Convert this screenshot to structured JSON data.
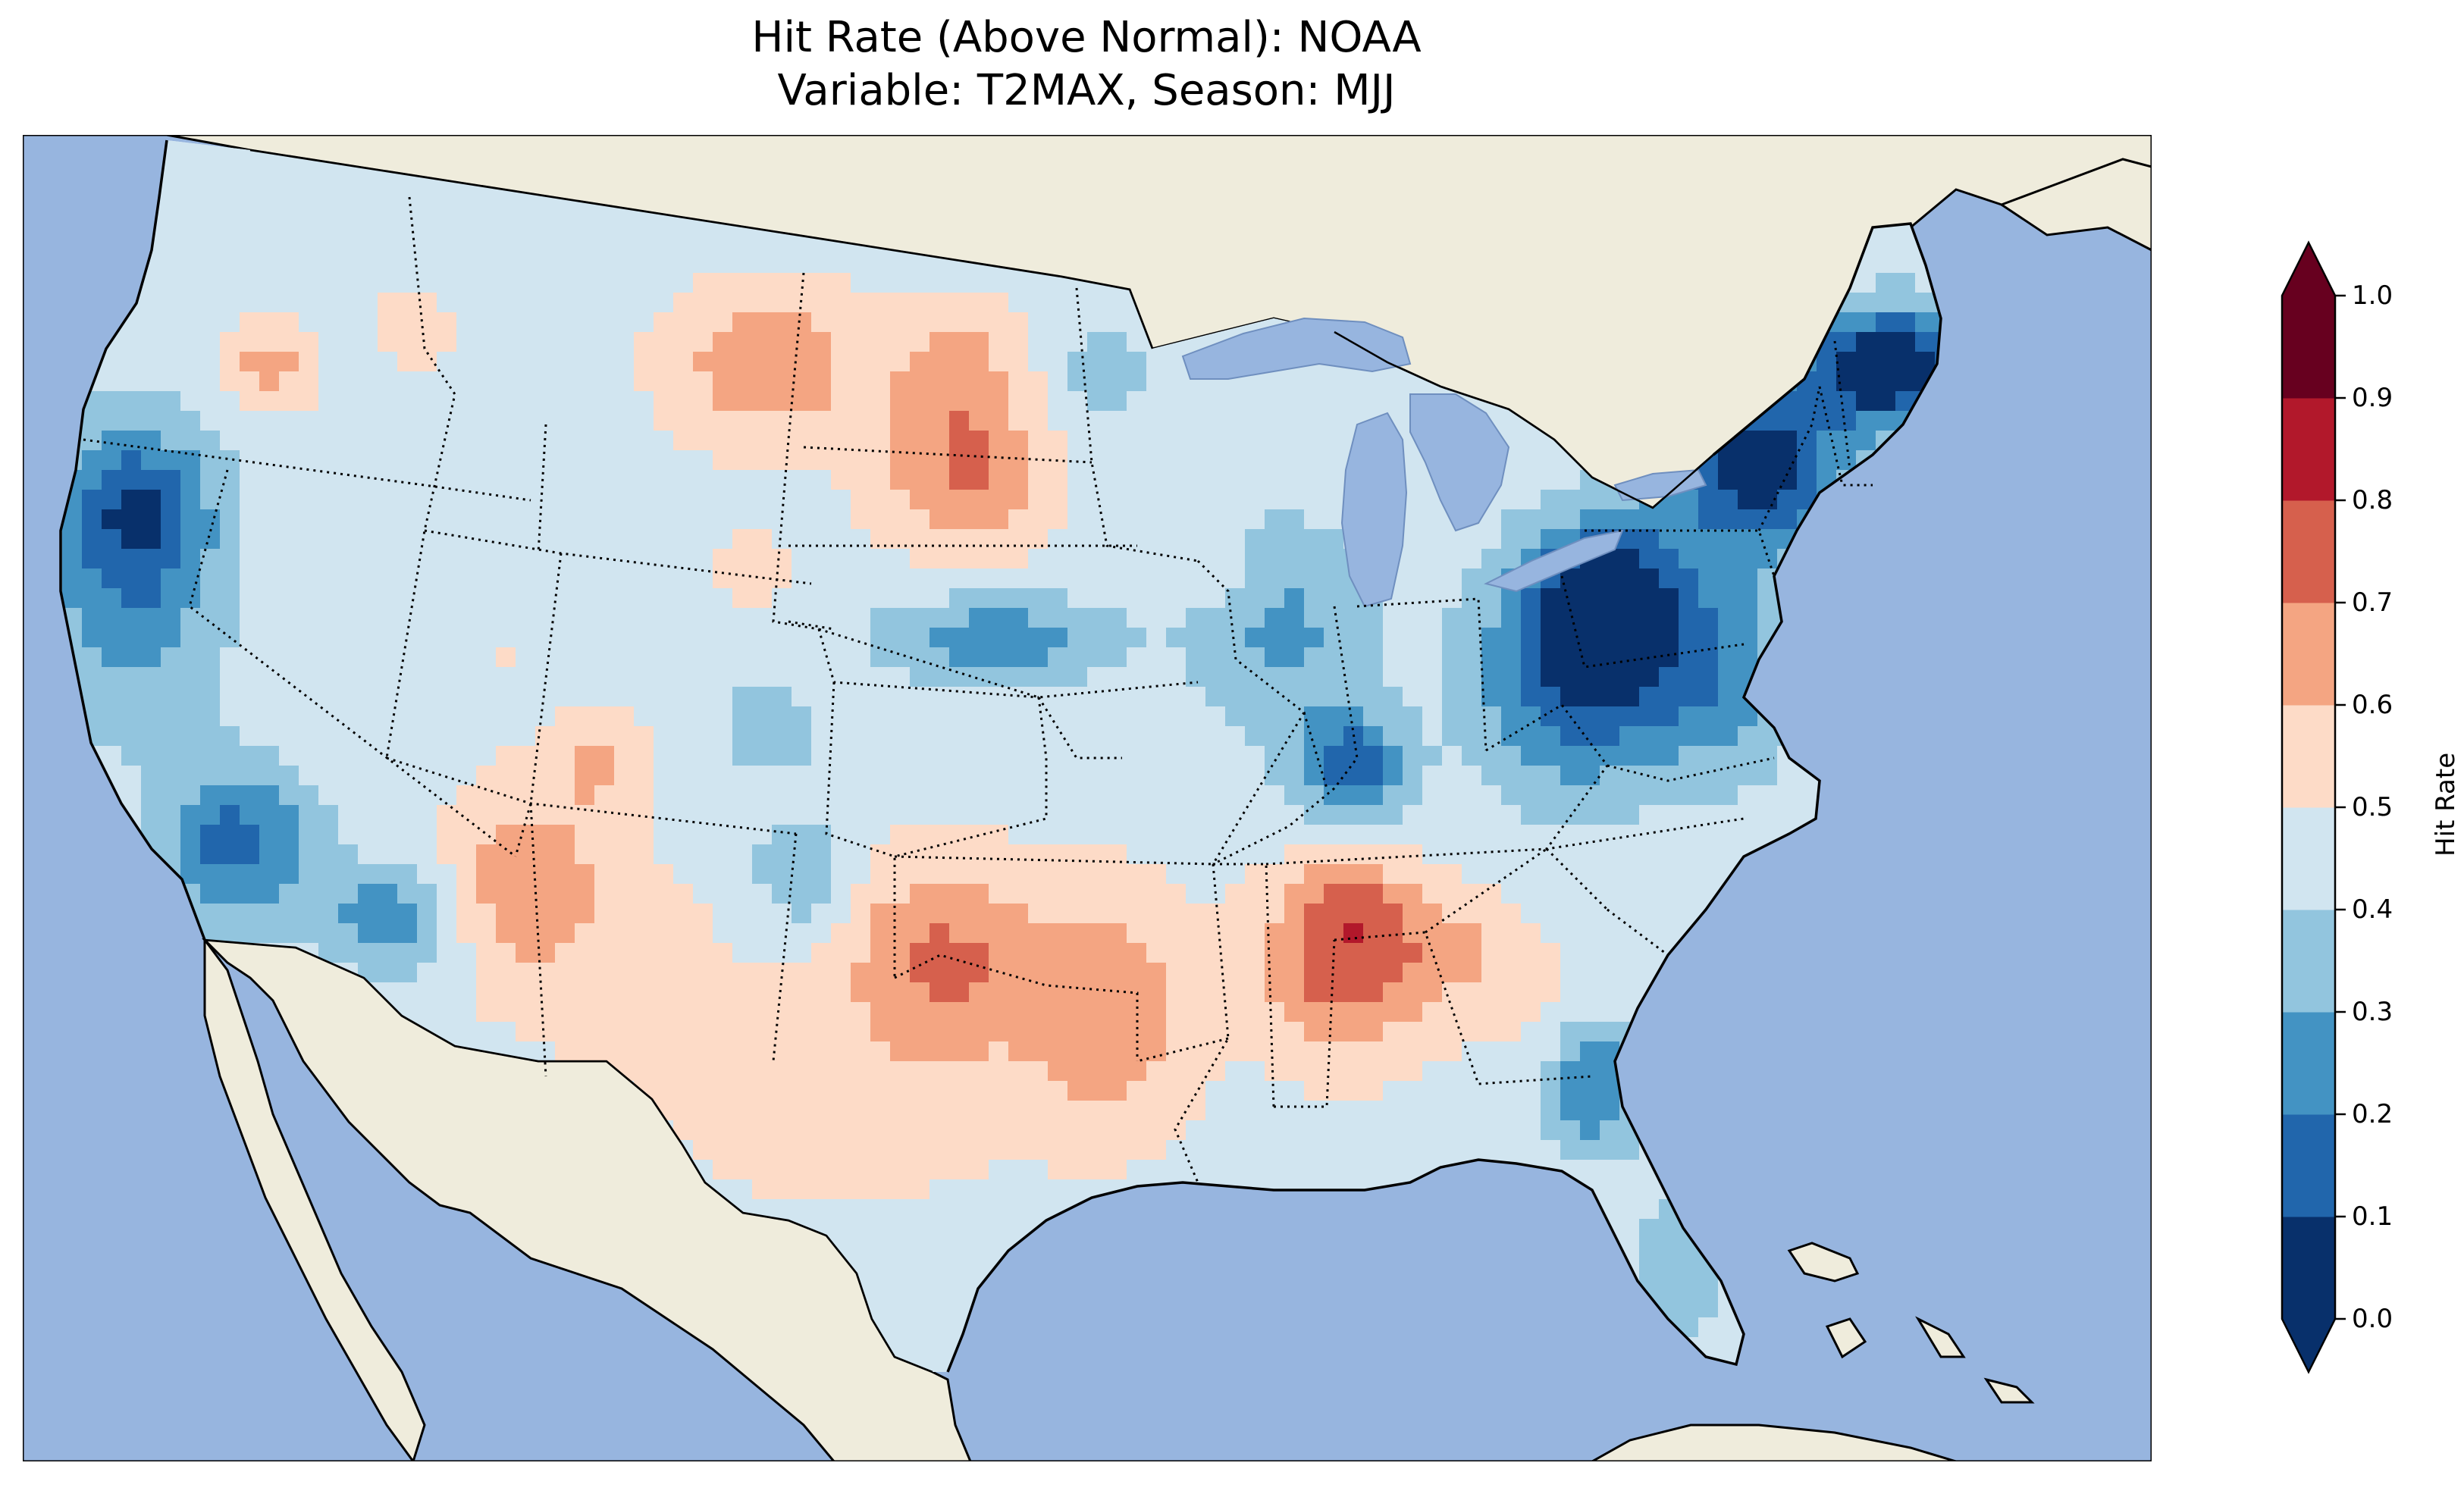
{
  "title": {
    "line1": "Hit Rate (Above Normal): NOAA",
    "line2": "Variable: T2MAX, Season: MJJ"
  },
  "colors": {
    "ocean": "#97b5df",
    "land": "#efecdc",
    "lake": "#97b5df",
    "palette": [
      "#08306b",
      "#2166ac",
      "#4393c3",
      "#92c5de",
      "#d1e5f0",
      "#fddbc7",
      "#f4a582",
      "#d6604d",
      "#b2182b",
      "#67001f"
    ]
  },
  "colorbar": {
    "label": "Hit Rate",
    "ticks": [
      "0.0",
      "0.1",
      "0.2",
      "0.3",
      "0.4",
      "0.5",
      "0.6",
      "0.7",
      "0.8",
      "0.9",
      "1.0"
    ],
    "extend": "both"
  },
  "chart_data": {
    "type": "heatmap",
    "title": "Hit Rate (Above Normal): NOAA — Variable: T2MAX, Season: MJJ",
    "region": "Contiguous United States",
    "variable": "T2MAX",
    "season": "MJJ",
    "value_range": [
      0.0,
      1.0
    ],
    "levels": [
      0.0,
      0.1,
      0.2,
      0.3,
      0.4,
      0.5,
      0.6,
      0.7,
      0.8,
      0.9,
      1.0
    ],
    "regional_estimates": [
      {
        "region": "Northern Maine",
        "hit_rate": 0.05
      },
      {
        "region": "Upstate New York / Vermont",
        "hit_rate": 0.08
      },
      {
        "region": "Pennsylvania",
        "hit_rate": 0.1
      },
      {
        "region": "Mid-Atlantic / Virginia",
        "hit_rate": 0.25
      },
      {
        "region": "Kentucky",
        "hit_rate": 0.2
      },
      {
        "region": "Central California coast",
        "hit_rate": 0.25
      },
      {
        "region": "Southern California",
        "hit_rate": 0.18
      },
      {
        "region": "Pacific Northwest coast",
        "hit_rate": 0.3
      },
      {
        "region": "Kansas / Nebraska border",
        "hit_rate": 0.3
      },
      {
        "region": "Montana / North Dakota",
        "hit_rate": 0.7
      },
      {
        "region": "South Dakota",
        "hit_rate": 0.7
      },
      {
        "region": "Oklahoma / North Texas",
        "hit_rate": 0.72
      },
      {
        "region": "Arkansas / Louisiana",
        "hit_rate": 0.7
      },
      {
        "region": "Mississippi / Alabama",
        "hit_rate": 0.75
      },
      {
        "region": "Northern Alabama",
        "hit_rate": 0.85
      },
      {
        "region": "Arizona / New Mexico",
        "hit_rate": 0.68
      },
      {
        "region": "Texas",
        "hit_rate": 0.55
      },
      {
        "region": "Florida peninsula",
        "hit_rate": 0.32
      },
      {
        "region": "Great Basin",
        "hit_rate": 0.5
      },
      {
        "region": "Colorado",
        "hit_rate": 0.45
      }
    ]
  }
}
